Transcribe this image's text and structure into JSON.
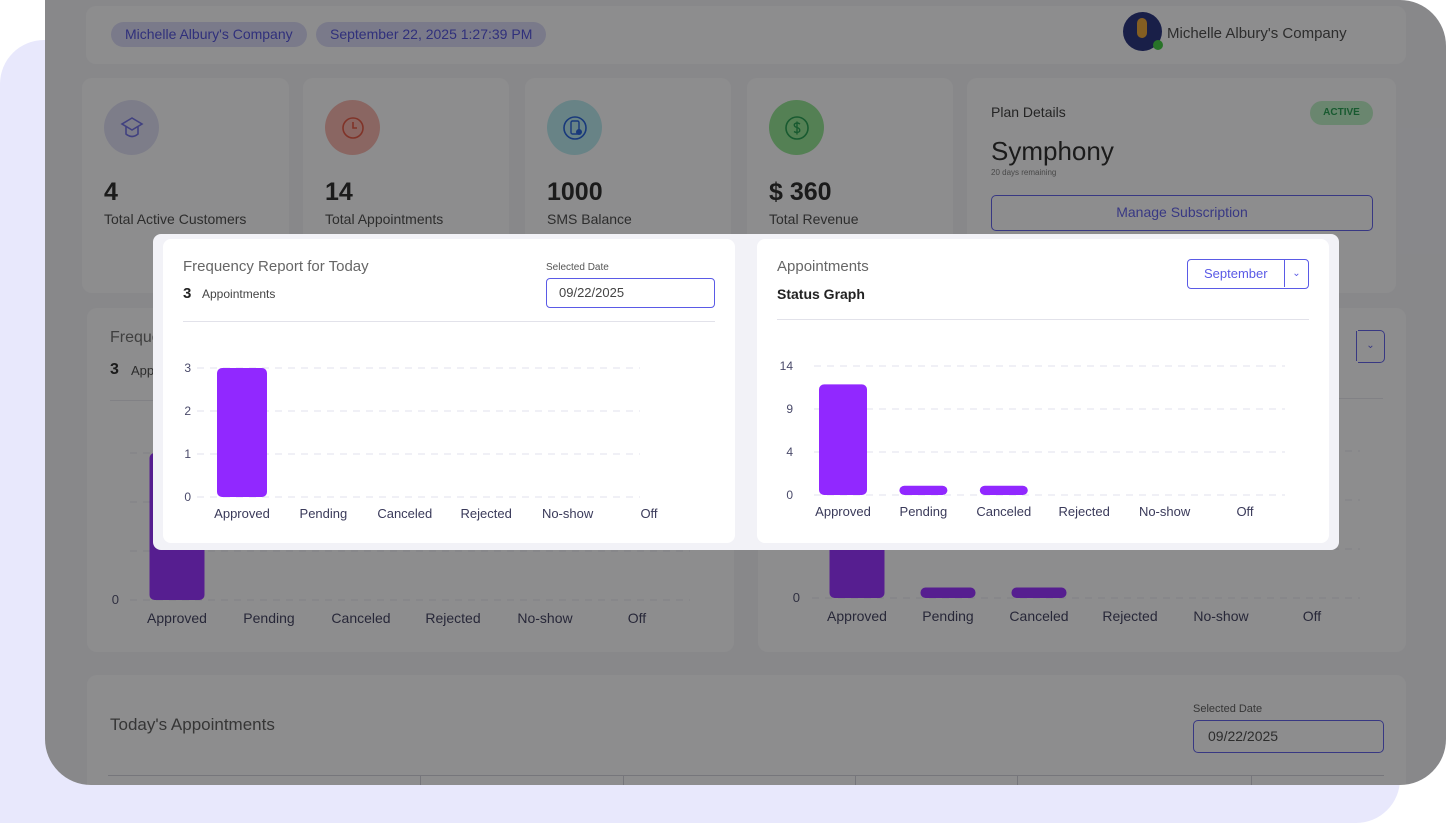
{
  "header": {
    "company_pill": "Michelle Albury's Company",
    "datetime_pill": "September 22, 2025 1:27:39 PM",
    "account_name": "Michelle Albury's Company"
  },
  "stats": [
    {
      "value": "4",
      "label": "Total Active Customers",
      "icon": "graduation-cap-icon",
      "color": "#6a6ae0"
    },
    {
      "value": "14",
      "label": "Total Appointments",
      "icon": "clock-icon",
      "color": "#e0503c"
    },
    {
      "value": "1000",
      "label": "SMS Balance",
      "icon": "sms-phone-icon",
      "color": "#1e5bd8"
    },
    {
      "value": "$ 360",
      "label": "Total Revenue",
      "icon": "dollar-icon",
      "color": "#1e9a4a"
    }
  ],
  "plan": {
    "title": "Plan Details",
    "badge": "ACTIVE",
    "name": "Symphony",
    "remaining": "20 days remaining",
    "manage_button": "Manage Subscription"
  },
  "frequency": {
    "title": "Frequency Report for Today",
    "count": "3",
    "count_label": "Appointments",
    "date_label": "Selected Date",
    "date_value": "09/22/2025"
  },
  "status": {
    "title": "Appointments",
    "subtitle": "Status Graph",
    "month_select": "September"
  },
  "todays": {
    "title": "Today's Appointments",
    "date_label": "Selected Date",
    "date_value": "09/22/2025"
  },
  "colors": {
    "accent": "#5a5ae6",
    "bar": "#9128ff",
    "active_badge": "#1e9a4a"
  },
  "chart_data": [
    {
      "type": "bar",
      "categories": [
        "Approved",
        "Pending",
        "Canceled",
        "Rejected",
        "No-show",
        "Off"
      ],
      "values": [
        3,
        0,
        0,
        0,
        0,
        0
      ],
      "yticks": [
        "0",
        "1",
        "2",
        "3"
      ],
      "ylim": [
        0,
        3
      ],
      "grid": true,
      "title": "",
      "xlabel": "",
      "ylabel": ""
    },
    {
      "type": "bar",
      "categories": [
        "Approved",
        "Pending",
        "Canceled",
        "Rejected",
        "No-show",
        "Off"
      ],
      "values": [
        12,
        1,
        1,
        0,
        0,
        0
      ],
      "yticks": [
        "0",
        "4",
        "9",
        "14"
      ],
      "ylim": [
        0,
        14
      ],
      "grid": true,
      "title": "",
      "xlabel": "",
      "ylabel": ""
    }
  ]
}
